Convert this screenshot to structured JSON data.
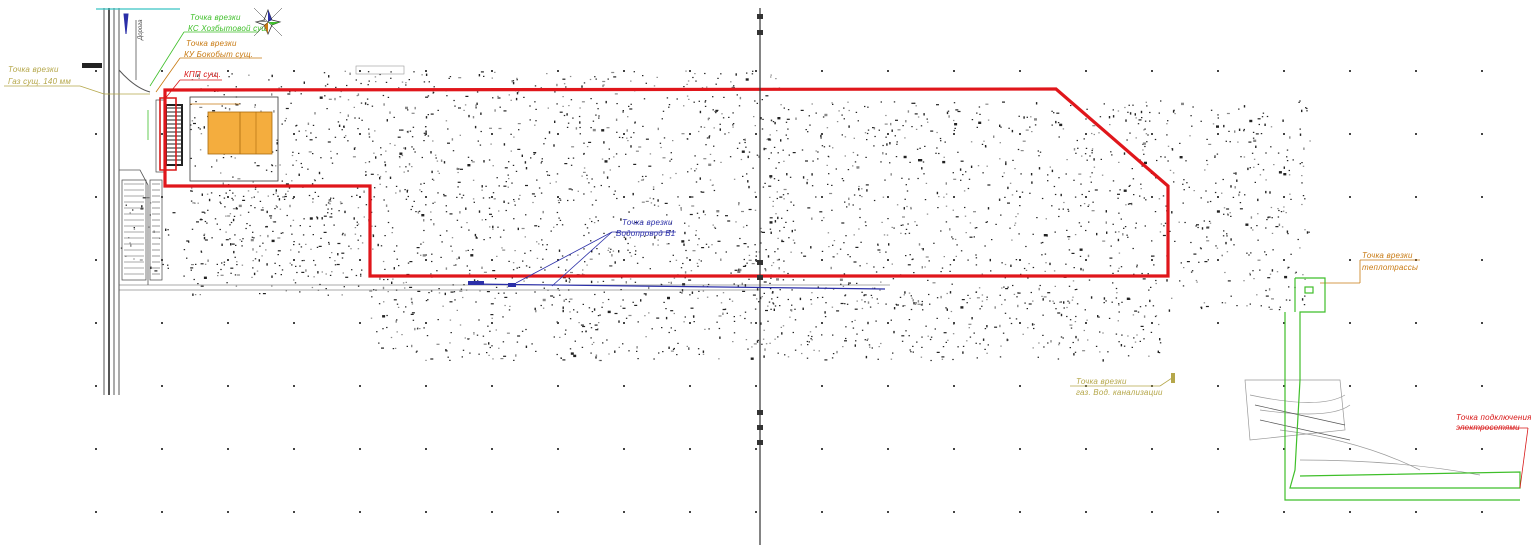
{
  "colors": {
    "site_boundary": "#e0161b",
    "water": "#2b2fa8",
    "grid_power": "#3fbf2a",
    "gas": "#b5a74a",
    "heat_sewer": "#c87a12",
    "kpp": "#d81818",
    "building": "#f4ad3e",
    "road": "#555555",
    "points": "#222222"
  },
  "annotations": {
    "gas_tap": {
      "line1": "Точка врезки",
      "line2": "Газ сущ. 140 мм"
    },
    "sewer_tap": {
      "line1": "Точка врезки",
      "line2": "КС Хозбытовой сущ."
    },
    "heat_tap": {
      "line1": "Точка врезки",
      "line2": "КУ Бокобыт сущ."
    },
    "kpp": {
      "line1": "КПП сущ."
    },
    "water_tap": {
      "line1": "Точка врезки",
      "line2": "Водопровод В1"
    },
    "power_tap": {
      "line1": "Точка врезки",
      "line2": "теплотрассы"
    },
    "gas_branch_tap": {
      "line1": "Точка врезки",
      "line2": "газ. Вод. канализации"
    },
    "grid_connection": {
      "line1": "Точка подключения",
      "line2": "электросетями"
    },
    "road_label": "Дорога"
  },
  "icons": {
    "north_arrow": "compass-rose-icon"
  }
}
